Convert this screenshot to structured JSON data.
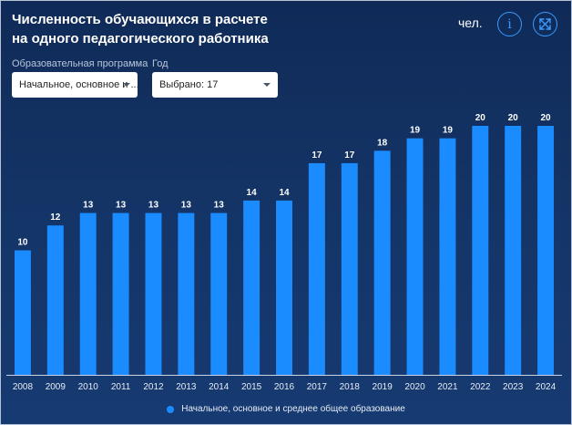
{
  "header": {
    "title_line1": "Численность обучающихся в расчете",
    "title_line2": "на одного педагогического работника",
    "unit": "чел.",
    "info_icon": "info-icon",
    "expand_icon": "expand-icon"
  },
  "filters": {
    "program_label": "Образовательная программа",
    "program_value": "Начальное, основное и ...",
    "year_label": "Год",
    "year_value": "Выбрано: 17"
  },
  "colors": {
    "bar": "#1a8cff",
    "accent": "#3a9bff"
  },
  "chart_data": {
    "type": "bar",
    "categories": [
      "2008",
      "2009",
      "2010",
      "2011",
      "2012",
      "2013",
      "2014",
      "2015",
      "2016",
      "2017",
      "2018",
      "2019",
      "2020",
      "2021",
      "2022",
      "2023",
      "2024"
    ],
    "series": [
      {
        "name": "Начальное, основное и среднее общее образование",
        "values": [
          10,
          12,
          13,
          13,
          13,
          13,
          13,
          14,
          14,
          17,
          17,
          18,
          19,
          19,
          20,
          20,
          20
        ]
      }
    ],
    "ylim": [
      0,
      20
    ],
    "grid": false,
    "legend": "bottom-center",
    "data_labels": true
  }
}
